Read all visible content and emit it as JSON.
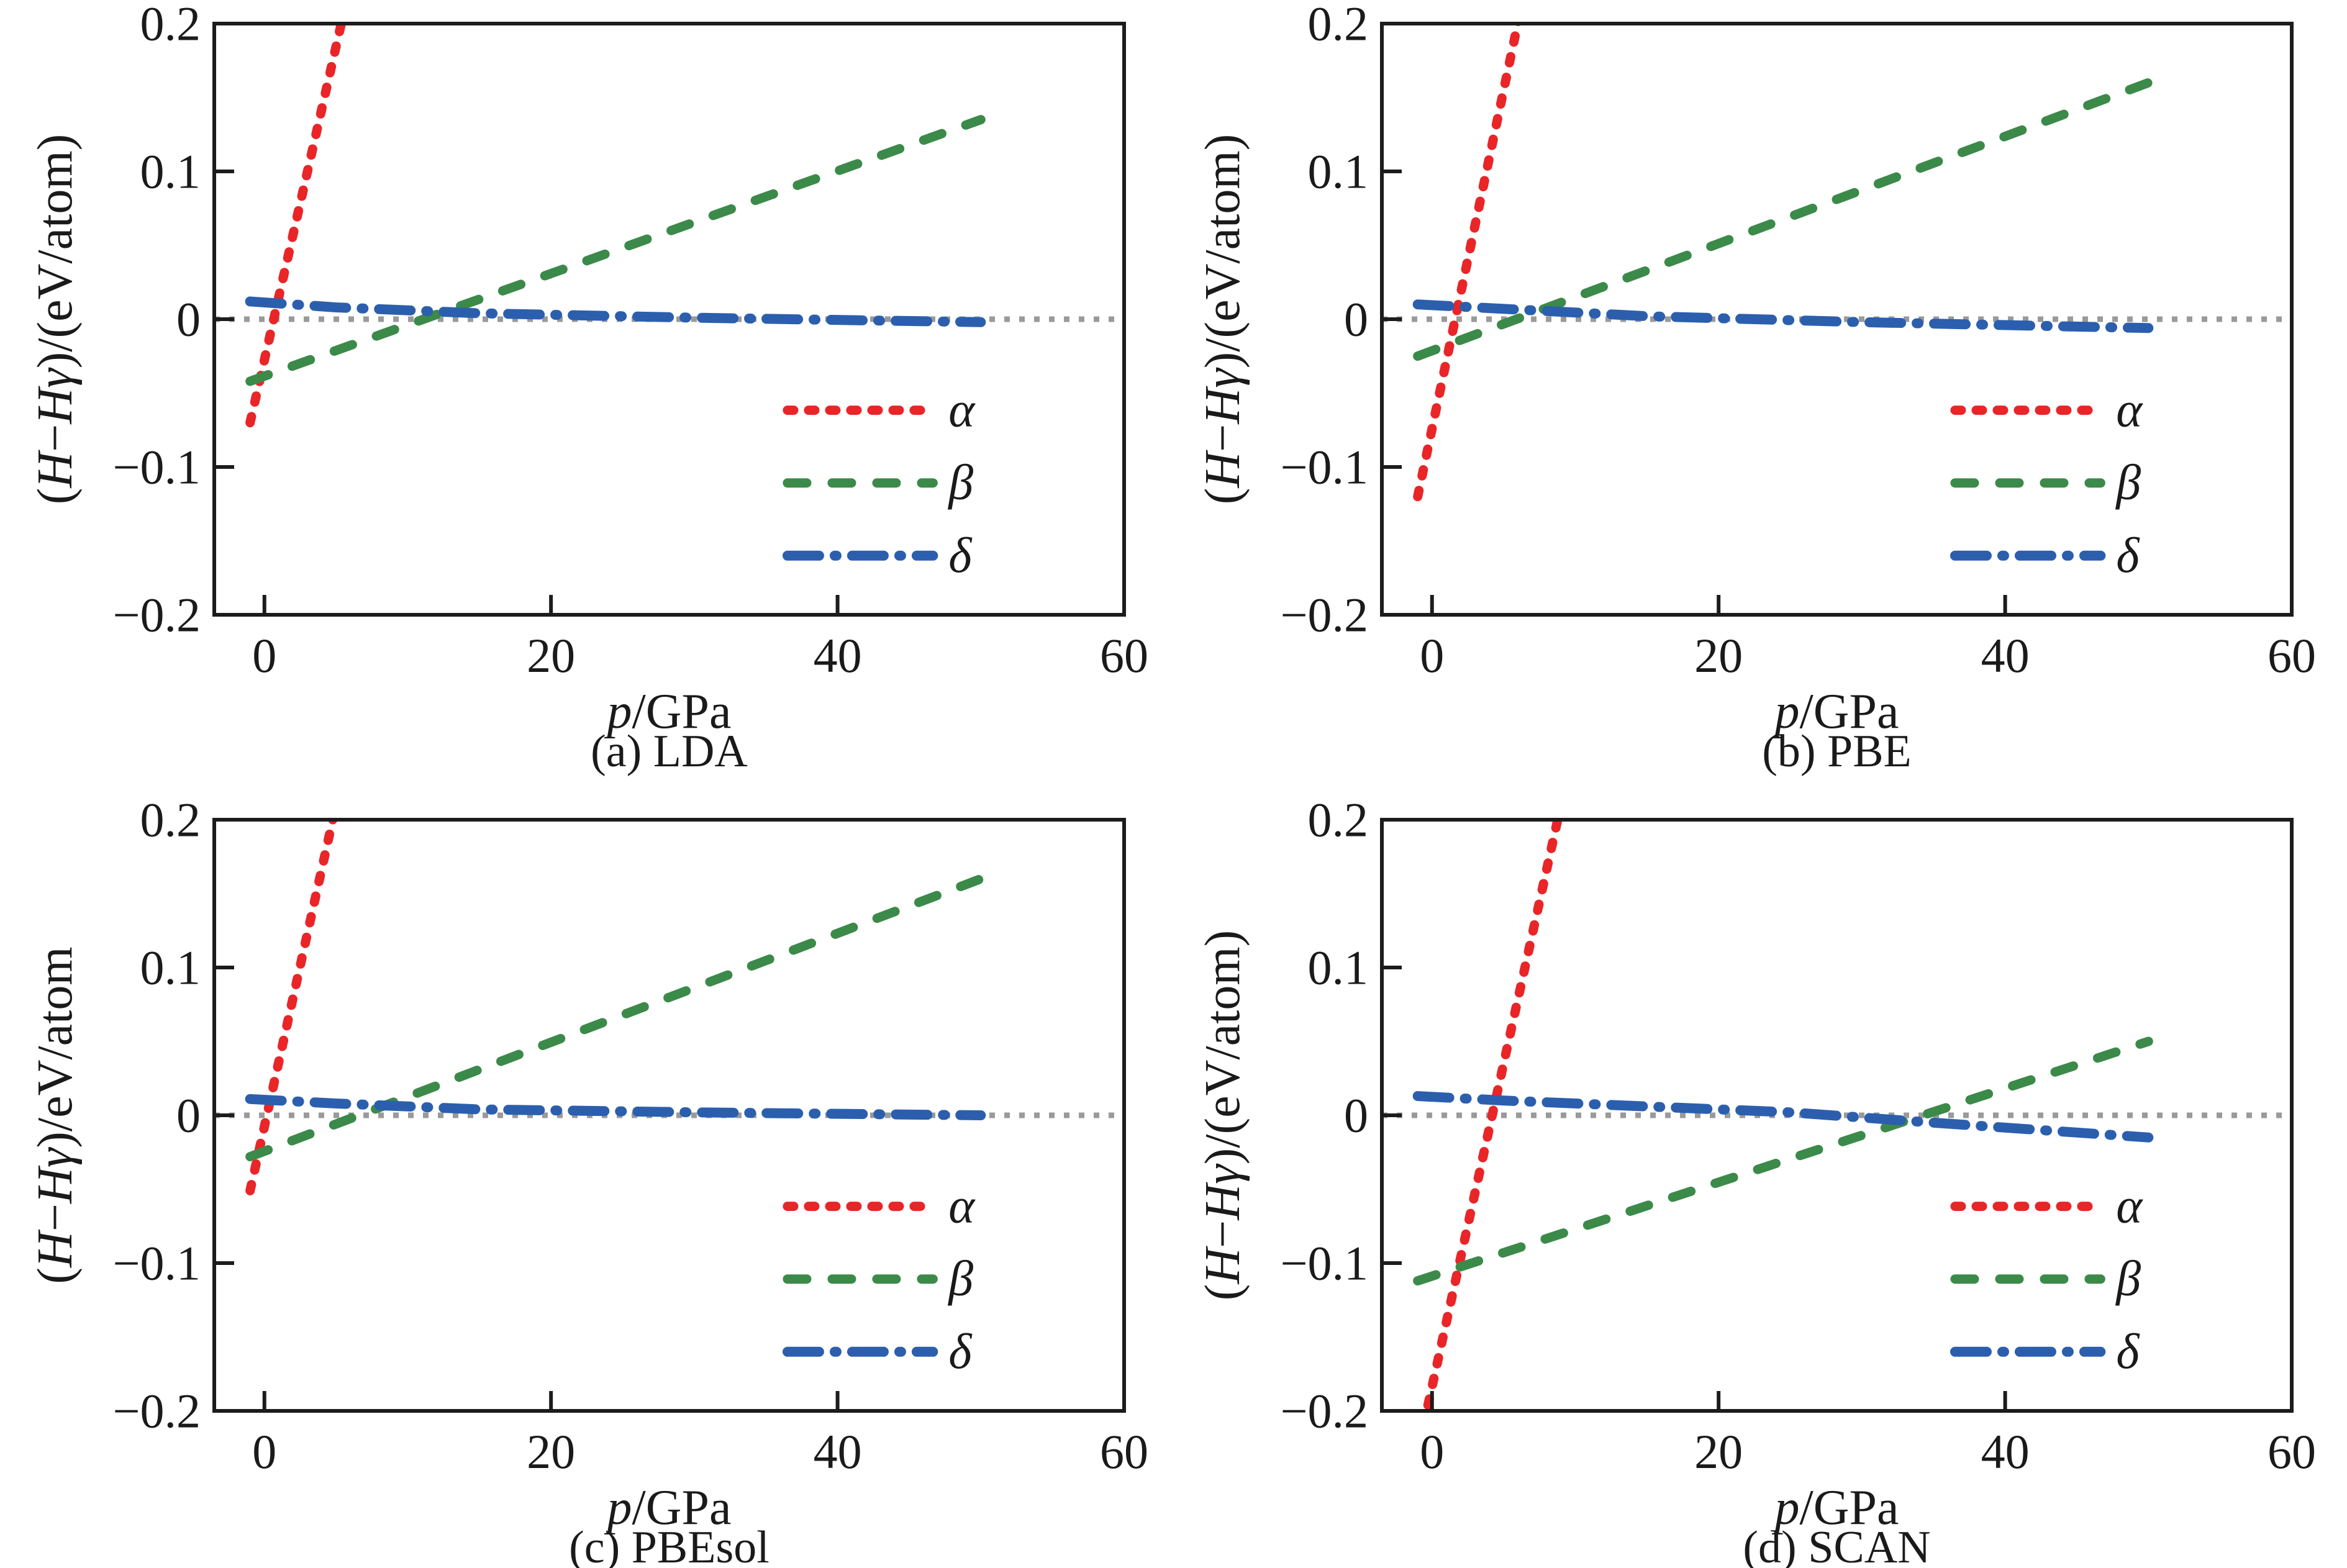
{
  "figure": {
    "background": "#ffffff",
    "axis_color": "#1c1c1c",
    "text_color": "#1a1a1a",
    "zero_line_color": "#9a9a9a",
    "series_styles": {
      "alpha": {
        "color": "#e92528",
        "dash": "dotted"
      },
      "beta": {
        "color": "#3b8a49",
        "dash": "dashed"
      },
      "delta": {
        "color": "#2b5fae",
        "dash": "dashdot"
      }
    }
  },
  "chart_data": [
    {
      "id": "a",
      "type": "line",
      "caption": "(a) LDA",
      "xlabel": [
        {
          "t": "p",
          "i": true
        },
        {
          "t": "/GPa",
          "i": false
        }
      ],
      "ylabel": [
        {
          "t": "(",
          "i": false
        },
        {
          "t": "H",
          "i": true
        },
        {
          "t": "−",
          "i": false
        },
        {
          "t": "H",
          "i": true
        },
        {
          "t": "γ",
          "i": true
        },
        {
          "t": ")/(eV/atom)",
          "i": false
        }
      ],
      "xlim": [
        -3.5,
        60
      ],
      "ylim": [
        -0.2,
        0.2
      ],
      "xticks": [
        {
          "v": 0,
          "label": "0"
        },
        {
          "v": 20,
          "label": "20"
        },
        {
          "v": 40,
          "label": "40"
        },
        {
          "v": 60,
          "label": "60"
        }
      ],
      "yticks": [
        {
          "v": -0.2,
          "label": "−0.2"
        },
        {
          "v": -0.1,
          "label": "−0.1"
        },
        {
          "v": 0,
          "label": "0"
        },
        {
          "v": 0.1,
          "label": "0.1"
        },
        {
          "v": 0.2,
          "label": "0.2"
        }
      ],
      "zero_line": true,
      "legend": [
        {
          "series": "alpha",
          "label": "α"
        },
        {
          "series": "beta",
          "label": "β"
        },
        {
          "series": "delta",
          "label": "δ"
        }
      ],
      "series": [
        {
          "name": "alpha",
          "points": [
            [
              -1,
              -0.07
            ],
            [
              5.6,
              0.21
            ]
          ]
        },
        {
          "name": "beta",
          "points": [
            [
              -1,
              -0.042
            ],
            [
              50,
              0.135
            ]
          ]
        },
        {
          "name": "delta",
          "points": [
            [
              -1,
              0.012
            ],
            [
              5,
              0.008
            ],
            [
              15,
              0.004
            ],
            [
              30,
              0.001
            ],
            [
              50,
              -0.002
            ]
          ]
        }
      ]
    },
    {
      "id": "b",
      "type": "line",
      "caption": "(b) PBE",
      "xlabel": [
        {
          "t": "p",
          "i": true
        },
        {
          "t": "/GPa",
          "i": false
        }
      ],
      "ylabel": [
        {
          "t": "(",
          "i": false
        },
        {
          "t": "H",
          "i": true
        },
        {
          "t": "−",
          "i": false
        },
        {
          "t": "H",
          "i": true
        },
        {
          "t": "γ",
          "i": true
        },
        {
          "t": ")/(eV/atom)",
          "i": false
        }
      ],
      "xlim": [
        -3.5,
        60
      ],
      "ylim": [
        -0.2,
        0.2
      ],
      "xticks": [
        {
          "v": 0,
          "label": "0"
        },
        {
          "v": 20,
          "label": "20"
        },
        {
          "v": 40,
          "label": "40"
        },
        {
          "v": 60,
          "label": "60"
        }
      ],
      "yticks": [
        {
          "v": -0.2,
          "label": "−0.2"
        },
        {
          "v": -0.1,
          "label": "−0.1"
        },
        {
          "v": 0,
          "label": "0"
        },
        {
          "v": 0.1,
          "label": "0.1"
        },
        {
          "v": 0.2,
          "label": "0.2"
        }
      ],
      "zero_line": true,
      "legend": [
        {
          "series": "alpha",
          "label": "α"
        },
        {
          "series": "beta",
          "label": "β"
        },
        {
          "series": "delta",
          "label": "δ"
        }
      ],
      "series": [
        {
          "name": "alpha",
          "points": [
            [
              -1,
              -0.12
            ],
            [
              6.2,
              0.21
            ]
          ]
        },
        {
          "name": "beta",
          "points": [
            [
              -1,
              -0.025
            ],
            [
              50,
              0.16
            ]
          ]
        },
        {
          "name": "delta",
          "points": [
            [
              -1,
              0.01
            ],
            [
              5,
              0.007
            ],
            [
              15,
              0.002
            ],
            [
              30,
              -0.002
            ],
            [
              50,
              -0.006
            ]
          ]
        }
      ]
    },
    {
      "id": "c",
      "type": "line",
      "caption": "(c) PBEsol",
      "xlabel": [
        {
          "t": "p",
          "i": true
        },
        {
          "t": "/GPa",
          "i": false
        }
      ],
      "ylabel": [
        {
          "t": "(",
          "i": false
        },
        {
          "t": "H",
          "i": true
        },
        {
          "t": "−",
          "i": false
        },
        {
          "t": "H",
          "i": true
        },
        {
          "t": "γ",
          "i": true
        },
        {
          "t": ")/eV/atom",
          "i": false
        }
      ],
      "xlim": [
        -3.5,
        60
      ],
      "ylim": [
        -0.2,
        0.2
      ],
      "xticks": [
        {
          "v": 0,
          "label": "0"
        },
        {
          "v": 20,
          "label": "20"
        },
        {
          "v": 40,
          "label": "40"
        },
        {
          "v": 60,
          "label": "60"
        }
      ],
      "yticks": [
        {
          "v": -0.2,
          "label": "−0.2"
        },
        {
          "v": -0.1,
          "label": "−0.1"
        },
        {
          "v": 0,
          "label": "0"
        },
        {
          "v": 0.1,
          "label": "0.1"
        },
        {
          "v": 0.2,
          "label": "0.2"
        }
      ],
      "zero_line": true,
      "legend": [
        {
          "series": "alpha",
          "label": "α"
        },
        {
          "series": "beta",
          "label": "β"
        },
        {
          "series": "delta",
          "label": "δ"
        }
      ],
      "series": [
        {
          "name": "alpha",
          "points": [
            [
              -1,
              -0.051
            ],
            [
              5.0,
              0.21
            ]
          ]
        },
        {
          "name": "beta",
          "points": [
            [
              -1,
              -0.028
            ],
            [
              50,
              0.16
            ]
          ]
        },
        {
          "name": "delta",
          "points": [
            [
              -1,
              0.011
            ],
            [
              5,
              0.008
            ],
            [
              15,
              0.004
            ],
            [
              30,
              0.002
            ],
            [
              50,
              0.0
            ]
          ]
        }
      ]
    },
    {
      "id": "d",
      "type": "line",
      "caption": "(d) SCAN",
      "xlabel": [
        {
          "t": "p",
          "i": true
        },
        {
          "t": "/GPa",
          "i": false
        }
      ],
      "ylabel": [
        {
          "t": "(",
          "i": false
        },
        {
          "t": "H",
          "i": true
        },
        {
          "t": "−",
          "i": false
        },
        {
          "t": "H",
          "i": true
        },
        {
          "t": "γ",
          "i": true
        },
        {
          "t": ")/(eV/atom)",
          "i": false
        }
      ],
      "xlim": [
        -3.5,
        60
      ],
      "ylim": [
        -0.2,
        0.2
      ],
      "xticks": [
        {
          "v": 0,
          "label": "0"
        },
        {
          "v": 20,
          "label": "20"
        },
        {
          "v": 40,
          "label": "40"
        },
        {
          "v": 60,
          "label": "60"
        }
      ],
      "yticks": [
        {
          "v": -0.2,
          "label": "−0.2"
        },
        {
          "v": -0.1,
          "label": "−0.1"
        },
        {
          "v": 0,
          "label": "0"
        },
        {
          "v": 0.1,
          "label": "0.1"
        },
        {
          "v": 0.2,
          "label": "0.2"
        }
      ],
      "zero_line": true,
      "legend": [
        {
          "series": "alpha",
          "label": "α"
        },
        {
          "series": "beta",
          "label": "β"
        },
        {
          "series": "delta",
          "label": "δ"
        }
      ],
      "series": [
        {
          "name": "alpha",
          "points": [
            [
              -0.6,
              -0.21
            ],
            [
              9.0,
              0.21
            ]
          ]
        },
        {
          "name": "beta",
          "points": [
            [
              -1,
              -0.112
            ],
            [
              50,
              0.05
            ]
          ]
        },
        {
          "name": "delta",
          "points": [
            [
              -1,
              0.013
            ],
            [
              5,
              0.01
            ],
            [
              15,
              0.006
            ],
            [
              25,
              0.002
            ],
            [
              35,
              -0.005
            ],
            [
              50,
              -0.015
            ]
          ]
        }
      ]
    }
  ]
}
